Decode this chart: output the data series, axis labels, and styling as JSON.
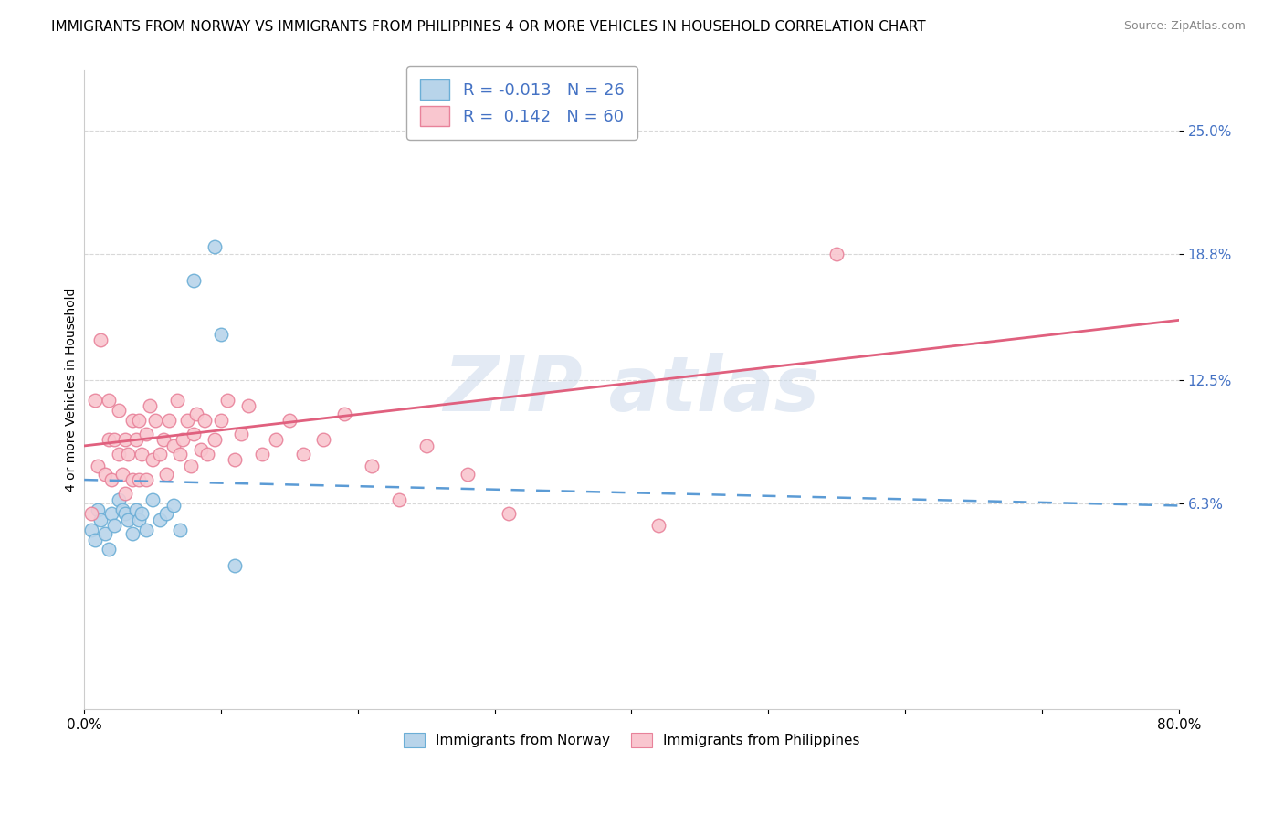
{
  "title": "IMMIGRANTS FROM NORWAY VS IMMIGRANTS FROM PHILIPPINES 4 OR MORE VEHICLES IN HOUSEHOLD CORRELATION CHART",
  "source": "Source: ZipAtlas.com",
  "ylabel": "4 or more Vehicles in Household",
  "ytick_labels": [
    "6.3%",
    "12.5%",
    "18.8%",
    "25.0%"
  ],
  "ytick_values": [
    0.063,
    0.125,
    0.188,
    0.25
  ],
  "xlim": [
    0.0,
    0.8
  ],
  "ylim": [
    -0.04,
    0.28
  ],
  "norway_R": -0.013,
  "norway_N": 26,
  "philippines_R": 0.142,
  "philippines_N": 60,
  "norway_color": "#b8d4ea",
  "norway_edge_color": "#6baed6",
  "norway_line_color": "#5b9bd5",
  "philippines_color": "#f9c6cf",
  "philippines_edge_color": "#e8829a",
  "philippines_line_color": "#e0607e",
  "norway_scatter_x": [
    0.005,
    0.008,
    0.01,
    0.012,
    0.015,
    0.018,
    0.02,
    0.022,
    0.025,
    0.028,
    0.03,
    0.032,
    0.035,
    0.038,
    0.04,
    0.042,
    0.045,
    0.05,
    0.055,
    0.06,
    0.065,
    0.07,
    0.08,
    0.095,
    0.1,
    0.11
  ],
  "norway_scatter_y": [
    0.05,
    0.045,
    0.06,
    0.055,
    0.048,
    0.04,
    0.058,
    0.052,
    0.065,
    0.06,
    0.058,
    0.055,
    0.048,
    0.06,
    0.055,
    0.058,
    0.05,
    0.065,
    0.055,
    0.058,
    0.062,
    0.05,
    0.175,
    0.192,
    0.148,
    0.032
  ],
  "philippines_scatter_x": [
    0.005,
    0.008,
    0.01,
    0.012,
    0.015,
    0.018,
    0.018,
    0.02,
    0.022,
    0.025,
    0.025,
    0.028,
    0.03,
    0.03,
    0.032,
    0.035,
    0.035,
    0.038,
    0.04,
    0.04,
    0.042,
    0.045,
    0.045,
    0.048,
    0.05,
    0.052,
    0.055,
    0.058,
    0.06,
    0.062,
    0.065,
    0.068,
    0.07,
    0.072,
    0.075,
    0.078,
    0.08,
    0.082,
    0.085,
    0.088,
    0.09,
    0.095,
    0.1,
    0.105,
    0.11,
    0.115,
    0.12,
    0.13,
    0.14,
    0.15,
    0.16,
    0.175,
    0.19,
    0.21,
    0.23,
    0.25,
    0.28,
    0.31,
    0.42,
    0.55
  ],
  "philippines_scatter_y": [
    0.058,
    0.115,
    0.082,
    0.145,
    0.078,
    0.095,
    0.115,
    0.075,
    0.095,
    0.088,
    0.11,
    0.078,
    0.068,
    0.095,
    0.088,
    0.075,
    0.105,
    0.095,
    0.075,
    0.105,
    0.088,
    0.075,
    0.098,
    0.112,
    0.085,
    0.105,
    0.088,
    0.095,
    0.078,
    0.105,
    0.092,
    0.115,
    0.088,
    0.095,
    0.105,
    0.082,
    0.098,
    0.108,
    0.09,
    0.105,
    0.088,
    0.095,
    0.105,
    0.115,
    0.085,
    0.098,
    0.112,
    0.088,
    0.095,
    0.105,
    0.088,
    0.095,
    0.108,
    0.082,
    0.065,
    0.092,
    0.078,
    0.058,
    0.052,
    0.188
  ],
  "phil_line_x0": 0.0,
  "phil_line_y0": 0.092,
  "phil_line_x1": 0.8,
  "phil_line_y1": 0.155,
  "norway_line_x0": 0.0,
  "norway_line_y0": 0.075,
  "norway_line_x1": 0.8,
  "norway_line_y1": 0.062,
  "grid_color": "#d8d8d8",
  "background_color": "#ffffff",
  "title_fontsize": 11,
  "axis_label_fontsize": 10,
  "tick_fontsize": 11,
  "legend_fontsize": 13
}
